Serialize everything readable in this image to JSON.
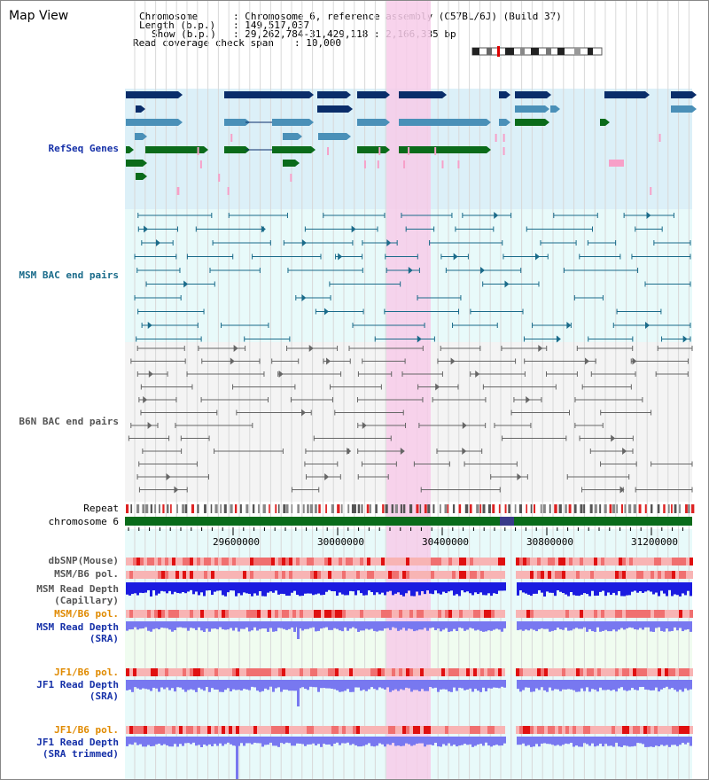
{
  "view": {
    "title": "Map View",
    "chromosome_label": "Chromosome",
    "chromosome_value": ": Chromosome 6, reference assembly (C57BL/6J) (Build 37)",
    "length_label": "Length (b.p.)",
    "length_value": ": 149,517,037",
    "show_label": "Show (b.p.)",
    "show_value": ": 29,262,784-31,429,118 : 2,166,335 bp",
    "coverage_label": "Read coverage check span",
    "coverage_value": ": 10,000"
  },
  "tracks": {
    "refseq": "RefSeq Genes",
    "msm_bac": "MSM BAC end pairs",
    "b6n_bac": "B6N BAC end pairs",
    "repeat": "Repeat",
    "chromosome": "chromosome 6",
    "dbsnp": "dbSNP(Mouse)",
    "msm_b6_pol": "MSM/B6 pol.",
    "msm_depth_cap_1": "MSM Read Depth",
    "msm_depth_cap_2": "(Capillary)",
    "msm_b6_pol_2": "MSM/B6 pol.",
    "msm_depth_sra_1": "MSM Read Depth",
    "msm_depth_sra_2": "(SRA)",
    "jf1_b6_pol": "JF1/B6 pol.",
    "jf1_depth_sra_1": "JF1 Read Depth",
    "jf1_depth_sra_2": "(SRA)",
    "jf1_b6_pol_2": "JF1/B6 pol.",
    "jf1_depth_trim_1": "JF1 Read Depth",
    "jf1_depth_trim_2": "(SRA trimmed)"
  },
  "axis": {
    "ticks": [
      "29600000",
      "30000000",
      "30400000",
      "30800000",
      "31200000"
    ]
  },
  "colors": {
    "refseq_bg": "#dcf0f8",
    "msm_bg": "#e8fafa",
    "highlight": "#f7cbe9",
    "gene_dark": "#0a2d6a",
    "gene_mid": "#4a90b8",
    "gene_green": "#0a6b1a",
    "depth_blue": "#1b1be0",
    "depth_light": "#7878f0"
  }
}
